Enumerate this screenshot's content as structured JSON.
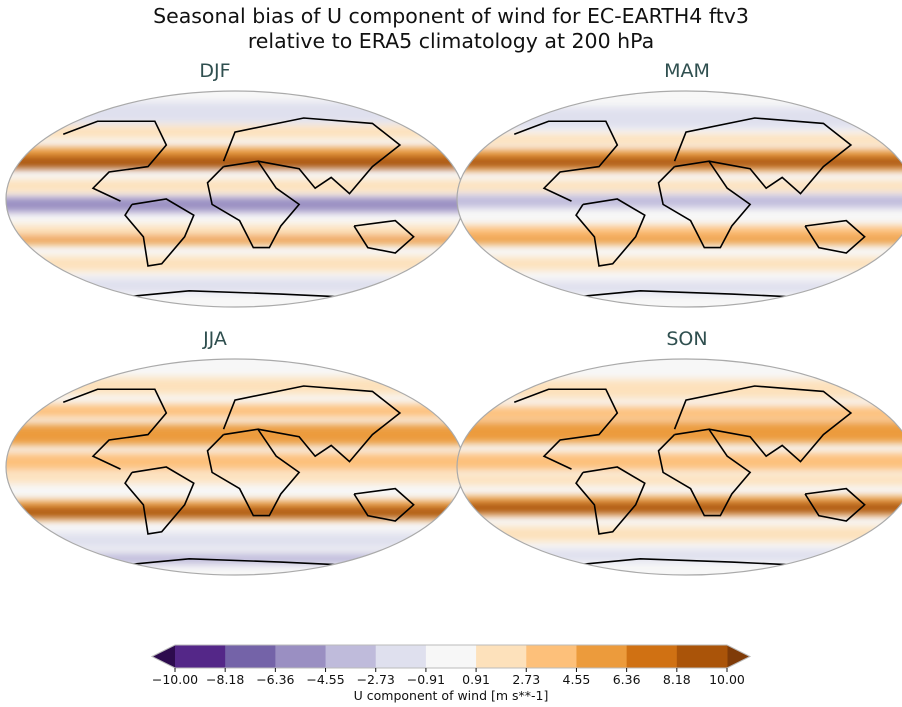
{
  "figure": {
    "title_line1": "Seasonal bias of U component of wind for EC-EARTH4 ftv3",
    "title_line2": "relative to ERA5 climatology at 200 hPa",
    "panels": [
      {
        "season": "DJF"
      },
      {
        "season": "MAM"
      },
      {
        "season": "JJA"
      },
      {
        "season": "SON"
      }
    ]
  },
  "colorbar": {
    "label": "U component of wind [m s**-1]",
    "levels": [
      "−10.00",
      "−8.18",
      "−6.36",
      "−4.55",
      "−2.73",
      "−0.91",
      "0.91",
      "2.73",
      "4.55",
      "6.36",
      "8.18",
      "10.00"
    ],
    "under_color": "#2d0b4e",
    "over_color": "#7f3b08",
    "colors": [
      "#542788",
      "#7463a8",
      "#9a8fc2",
      "#bfbbdb",
      "#dfe0ee",
      "#f7f7f7",
      "#fde1bb",
      "#fdc07a",
      "#ec9b3c",
      "#d07113",
      "#aa5409"
    ]
  }
}
